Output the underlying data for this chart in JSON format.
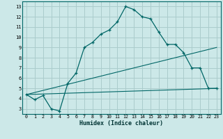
{
  "xlabel": "Humidex (Indice chaleur)",
  "ylabel": "",
  "bg_color": "#cce8e8",
  "grid_color": "#aacccc",
  "line_color": "#006666",
  "xlim": [
    -0.5,
    23.5
  ],
  "ylim": [
    2.5,
    13.5
  ],
  "xticks": [
    0,
    1,
    2,
    3,
    4,
    5,
    6,
    7,
    8,
    9,
    10,
    11,
    12,
    13,
    14,
    15,
    16,
    17,
    18,
    19,
    20,
    21,
    22,
    23
  ],
  "yticks": [
    3,
    4,
    5,
    6,
    7,
    8,
    9,
    10,
    11,
    12,
    13
  ],
  "line1_x": [
    0,
    1,
    2,
    3,
    4,
    5,
    6,
    7,
    8,
    9,
    10,
    11,
    12,
    13,
    14,
    15,
    16,
    17,
    18,
    19,
    20,
    21,
    22,
    23
  ],
  "line1_y": [
    4.4,
    3.9,
    4.3,
    3.0,
    2.8,
    5.5,
    6.5,
    9.0,
    9.5,
    10.3,
    10.7,
    11.5,
    13.0,
    12.7,
    12.0,
    11.8,
    10.5,
    9.3,
    9.3,
    8.5,
    7.0,
    7.0,
    5.0,
    5.0
  ],
  "line2_x": [
    0,
    23
  ],
  "line2_y": [
    4.4,
    9.0
  ],
  "line3_x": [
    0,
    23
  ],
  "line3_y": [
    4.4,
    5.0
  ]
}
